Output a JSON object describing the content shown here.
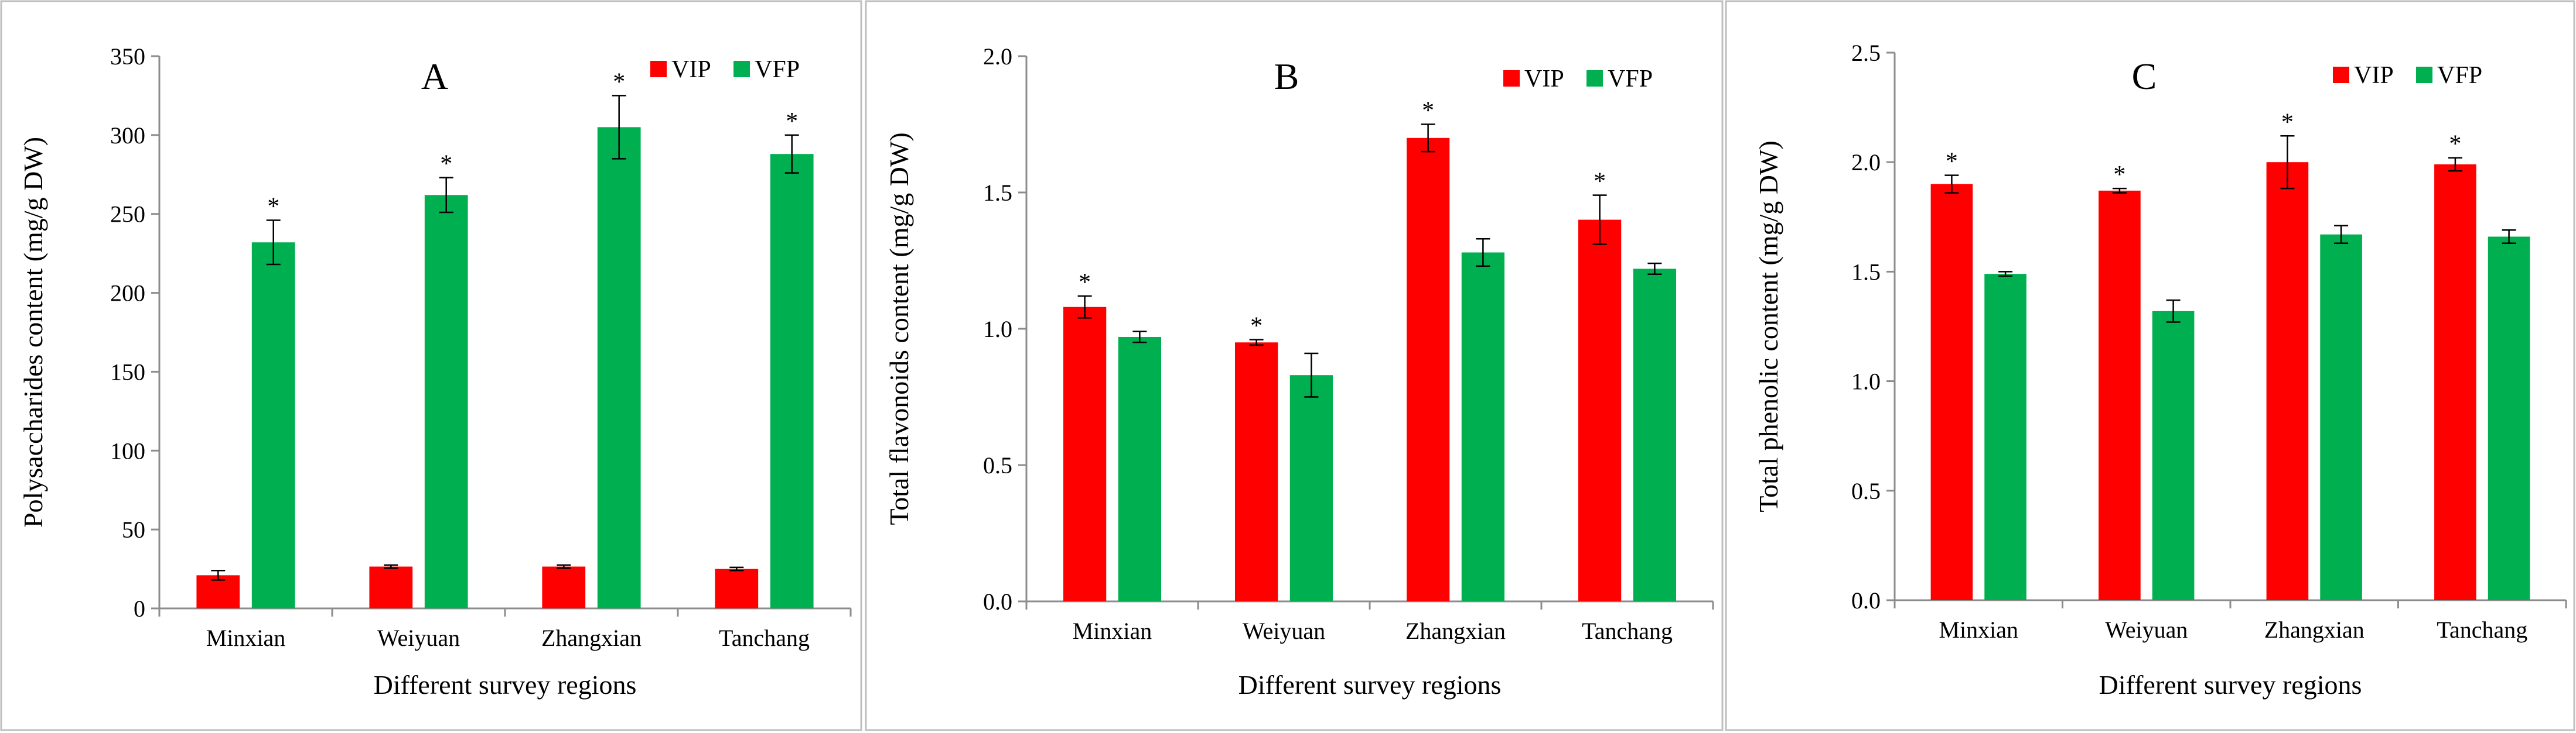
{
  "figure": {
    "colors": {
      "VIP": "#ff0000",
      "VFP": "#00b050",
      "frame": "#bfbfbf",
      "axis": "#8c8c8c"
    }
  },
  "chart_data": [
    {
      "type": "bar",
      "panel": "A",
      "categories": [
        "Minxian",
        "Weiyuan",
        "Zhangxian",
        "Tanchang"
      ],
      "xlabel": "Different survey regions",
      "ylabel": "Polysaccharides content (mg/g DW)",
      "ylim": [
        0,
        350
      ],
      "yticks": [
        0,
        50,
        100,
        150,
        200,
        250,
        300,
        350
      ],
      "ytick_labels": [
        "0",
        "50",
        "100",
        "150",
        "200",
        "250",
        "300",
        "350"
      ],
      "grid": false,
      "legend_position": "top-right",
      "series": [
        {
          "name": "VIP",
          "color": "#ff0000",
          "values": [
            21,
            26.5,
            26.5,
            25
          ],
          "errors": [
            3,
            1,
            1,
            1
          ],
          "stars": [
            false,
            false,
            false,
            false
          ]
        },
        {
          "name": "VFP",
          "color": "#00b050",
          "values": [
            232,
            262,
            305,
            288
          ],
          "errors": [
            14,
            11,
            20,
            12
          ],
          "stars": [
            true,
            true,
            true,
            true
          ]
        }
      ]
    },
    {
      "type": "bar",
      "panel": "B",
      "categories": [
        "Minxian",
        "Weiyuan",
        "Zhangxian",
        "Tanchang"
      ],
      "xlabel": "Different survey regions",
      "ylabel": "Total flavonoids content (mg/g DW)",
      "ylim": [
        0,
        2
      ],
      "yticks": [
        0,
        0.5,
        1,
        1.5,
        2
      ],
      "ytick_labels": [
        "0.0",
        "0.5",
        "1.0",
        "1.5",
        "2.0"
      ],
      "grid": false,
      "legend_position": "top-right",
      "series": [
        {
          "name": "VIP",
          "color": "#ff0000",
          "values": [
            1.08,
            0.95,
            1.7,
            1.4
          ],
          "errors": [
            0.04,
            0.01,
            0.05,
            0.09
          ],
          "stars": [
            true,
            true,
            true,
            true
          ]
        },
        {
          "name": "VFP",
          "color": "#00b050",
          "values": [
            0.97,
            0.83,
            1.28,
            1.22
          ],
          "errors": [
            0.02,
            0.08,
            0.05,
            0.02
          ],
          "stars": [
            false,
            false,
            false,
            false
          ]
        }
      ]
    },
    {
      "type": "bar",
      "panel": "C",
      "categories": [
        "Minxian",
        "Weiyuan",
        "Zhangxian",
        "Tanchang"
      ],
      "xlabel": "Different survey regions",
      "ylabel": "Total phenolic content (mg/g DW)",
      "ylim": [
        0,
        2.5
      ],
      "yticks": [
        0,
        0.5,
        1,
        1.5,
        2,
        2.5
      ],
      "ytick_labels": [
        "0.0",
        "0.5",
        "1.0",
        "1.5",
        "2.0",
        "2.5"
      ],
      "grid": false,
      "legend_position": "top-right",
      "series": [
        {
          "name": "VIP",
          "color": "#ff0000",
          "values": [
            1.9,
            1.87,
            2.0,
            1.99
          ],
          "errors": [
            0.04,
            0.01,
            0.12,
            0.03
          ],
          "stars": [
            true,
            true,
            true,
            true
          ]
        },
        {
          "name": "VFP",
          "color": "#00b050",
          "values": [
            1.49,
            1.32,
            1.67,
            1.66
          ],
          "errors": [
            0.01,
            0.05,
            0.04,
            0.03
          ],
          "stars": [
            false,
            false,
            false,
            false
          ]
        }
      ]
    }
  ]
}
